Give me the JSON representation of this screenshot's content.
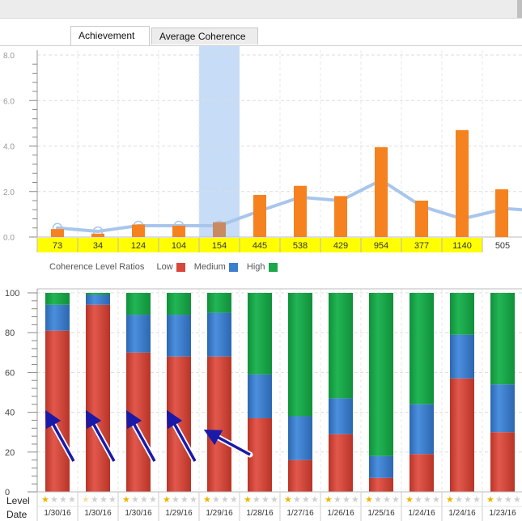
{
  "window": {
    "titlebar": ""
  },
  "tabs": [
    {
      "label": "Achievement",
      "active": true
    },
    {
      "label": "Average Coherence",
      "active": false
    }
  ],
  "achievement_chart": {
    "y_ticks": [
      "0.0",
      "2.0",
      "4.0",
      "6.0",
      "8.0"
    ],
    "bar_values": [
      0.35,
      0.15,
      0.55,
      0.5,
      0.65,
      1.85,
      2.25,
      1.8,
      3.95,
      1.6,
      4.7,
      2.1
    ],
    "line_values": [
      0.4,
      0.25,
      0.5,
      0.5,
      0.5,
      1.15,
      1.75,
      1.6,
      2.5,
      1.35,
      0.8,
      1.25
    ],
    "point_labels": [
      "73",
      "34",
      "124",
      "104",
      "154",
      "445",
      "538",
      "429",
      "954",
      "377",
      "1140",
      "505"
    ],
    "highlighted_labels_count": 11,
    "selected_index": 4,
    "colors": {
      "bar": "#f5821f",
      "selected_bar": "#c98a62",
      "line": "#a8c6ec",
      "label_bg": "#ffff00",
      "selection": "#c6dcf7"
    }
  },
  "legend": {
    "title": "Coherence Level Ratios",
    "items": [
      {
        "label": "Low",
        "color": "#d9463c"
      },
      {
        "label": "Medium",
        "color": "#3b7fce"
      },
      {
        "label": "High",
        "color": "#1aa84a"
      }
    ]
  },
  "chart_data": {
    "type": "bar",
    "stacked": true,
    "categories": [
      "1/30/16",
      "1/30/16",
      "1/30/16",
      "1/29/16",
      "1/29/16",
      "1/28/16",
      "1/27/16",
      "1/26/16",
      "1/25/16",
      "1/24/16",
      "1/24/16",
      "1/23/16"
    ],
    "series": [
      {
        "name": "Low",
        "values": [
          81,
          94,
          70,
          68,
          68,
          37,
          16,
          29,
          7,
          19,
          57,
          30
        ]
      },
      {
        "name": "Medium",
        "values": [
          13,
          5,
          19,
          21,
          22,
          22,
          22,
          18,
          11,
          25,
          22,
          24
        ]
      },
      {
        "name": "High",
        "values": [
          6,
          1,
          11,
          11,
          10,
          41,
          62,
          53,
          82,
          56,
          21,
          46
        ]
      }
    ],
    "y_ticks": [
      "0",
      "20",
      "40",
      "60",
      "80",
      "100"
    ],
    "ylim": [
      0,
      100
    ],
    "grid": true,
    "legend_position": "top-left",
    "arrows_on_bars": [
      0,
      1,
      2,
      3,
      4
    ],
    "star_levels": [
      1,
      0,
      1,
      1,
      1,
      1,
      1,
      1,
      1,
      1,
      1,
      1
    ]
  },
  "footer": {
    "level_label": "Level",
    "date_label": "Date"
  }
}
